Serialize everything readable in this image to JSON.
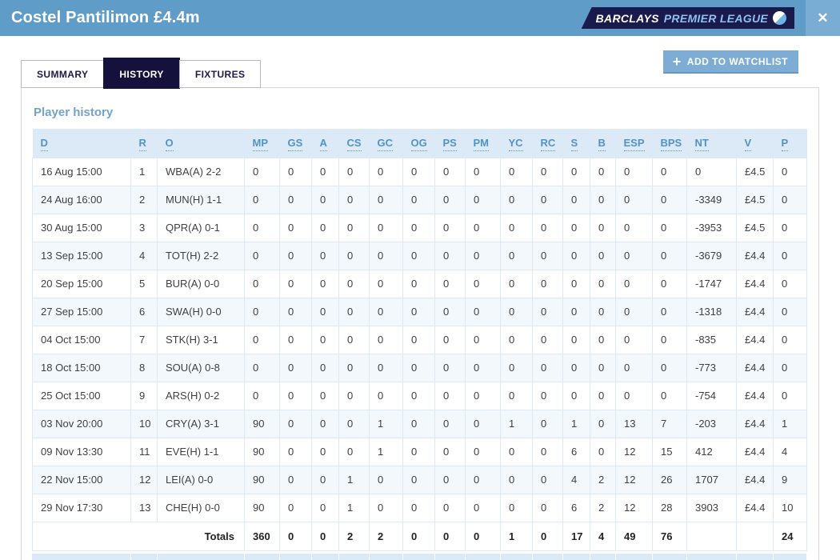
{
  "header": {
    "title": "Costel Pantilimon £4.4m",
    "logo": {
      "barclays": "BARCLAYS",
      "premier_league": "PREMIER LEAGUE",
      "crest_icon": "lion-crest-icon"
    },
    "close_label": "✕"
  },
  "tabs": [
    {
      "label": "SUMMARY",
      "active": false
    },
    {
      "label": "HISTORY",
      "active": true
    },
    {
      "label": "FIXTURES",
      "active": false
    }
  ],
  "watchlist_button": {
    "icon": "+",
    "label": "ADD TO WATCHLIST"
  },
  "section_title": "Player history",
  "table": {
    "columns": [
      "D",
      "R",
      "O",
      "MP",
      "GS",
      "A",
      "CS",
      "GC",
      "OG",
      "PS",
      "PM",
      "YC",
      "RC",
      "S",
      "B",
      "ESP",
      "BPS",
      "NT",
      "V",
      "P"
    ],
    "rows": [
      [
        "16 Aug 15:00",
        "1",
        "WBA(A) 2-2",
        "0",
        "0",
        "0",
        "0",
        "0",
        "0",
        "0",
        "0",
        "0",
        "0",
        "0",
        "0",
        "0",
        "0",
        "0",
        "£4.5",
        "0"
      ],
      [
        "24 Aug 16:00",
        "2",
        "MUN(H) 1-1",
        "0",
        "0",
        "0",
        "0",
        "0",
        "0",
        "0",
        "0",
        "0",
        "0",
        "0",
        "0",
        "0",
        "0",
        "-3349",
        "£4.5",
        "0"
      ],
      [
        "30 Aug 15:00",
        "3",
        "QPR(A) 0-1",
        "0",
        "0",
        "0",
        "0",
        "0",
        "0",
        "0",
        "0",
        "0",
        "0",
        "0",
        "0",
        "0",
        "0",
        "-3953",
        "£4.5",
        "0"
      ],
      [
        "13 Sep 15:00",
        "4",
        "TOT(H) 2-2",
        "0",
        "0",
        "0",
        "0",
        "0",
        "0",
        "0",
        "0",
        "0",
        "0",
        "0",
        "0",
        "0",
        "0",
        "-3679",
        "£4.4",
        "0"
      ],
      [
        "20 Sep 15:00",
        "5",
        "BUR(A) 0-0",
        "0",
        "0",
        "0",
        "0",
        "0",
        "0",
        "0",
        "0",
        "0",
        "0",
        "0",
        "0",
        "0",
        "0",
        "-1747",
        "£4.4",
        "0"
      ],
      [
        "27 Sep 15:00",
        "6",
        "SWA(H) 0-0",
        "0",
        "0",
        "0",
        "0",
        "0",
        "0",
        "0",
        "0",
        "0",
        "0",
        "0",
        "0",
        "0",
        "0",
        "-1318",
        "£4.4",
        "0"
      ],
      [
        "04 Oct 15:00",
        "7",
        "STK(H) 3-1",
        "0",
        "0",
        "0",
        "0",
        "0",
        "0",
        "0",
        "0",
        "0",
        "0",
        "0",
        "0",
        "0",
        "0",
        "-835",
        "£4.4",
        "0"
      ],
      [
        "18 Oct 15:00",
        "8",
        "SOU(A) 0-8",
        "0",
        "0",
        "0",
        "0",
        "0",
        "0",
        "0",
        "0",
        "0",
        "0",
        "0",
        "0",
        "0",
        "0",
        "-773",
        "£4.4",
        "0"
      ],
      [
        "25 Oct 15:00",
        "9",
        "ARS(H) 0-2",
        "0",
        "0",
        "0",
        "0",
        "0",
        "0",
        "0",
        "0",
        "0",
        "0",
        "0",
        "0",
        "0",
        "0",
        "-754",
        "£4.4",
        "0"
      ],
      [
        "03 Nov 20:00",
        "10",
        "CRY(A) 3-1",
        "90",
        "0",
        "0",
        "0",
        "1",
        "0",
        "0",
        "0",
        "1",
        "0",
        "1",
        "0",
        "13",
        "7",
        "-203",
        "£4.4",
        "1"
      ],
      [
        "09 Nov 13:30",
        "11",
        "EVE(H) 1-1",
        "90",
        "0",
        "0",
        "0",
        "1",
        "0",
        "0",
        "0",
        "0",
        "0",
        "6",
        "0",
        "12",
        "15",
        "412",
        "£4.4",
        "4"
      ],
      [
        "22 Nov 15:00",
        "12",
        "LEI(A) 0-0",
        "90",
        "0",
        "0",
        "1",
        "0",
        "0",
        "0",
        "0",
        "0",
        "0",
        "4",
        "2",
        "12",
        "26",
        "1707",
        "£4.4",
        "9"
      ],
      [
        "29 Nov 17:30",
        "13",
        "CHE(H) 0-0",
        "90",
        "0",
        "0",
        "1",
        "0",
        "0",
        "0",
        "0",
        "0",
        "0",
        "6",
        "2",
        "12",
        "28",
        "3903",
        "£4.4",
        "10"
      ]
    ],
    "totals": {
      "label": "Totals",
      "values": [
        "360",
        "0",
        "0",
        "2",
        "2",
        "0",
        "0",
        "0",
        "1",
        "0",
        "17",
        "4",
        "49",
        "76",
        "",
        "",
        "24"
      ]
    }
  },
  "colors": {
    "topbar": "#5f9cc8",
    "navy": "#14123c",
    "logo_navy": "#1b1a4c",
    "logo_premier_text": "#8fc0f0",
    "close_button": "#7aadd3",
    "watchlist_button": "#7dadd4",
    "table_header_bg": "#dce9f6",
    "table_header_text": "#4f93c9",
    "row_alt_bg": "#f3f8fc",
    "table_border": "#ddeaf6",
    "section_title_text": "#71a3cc"
  }
}
